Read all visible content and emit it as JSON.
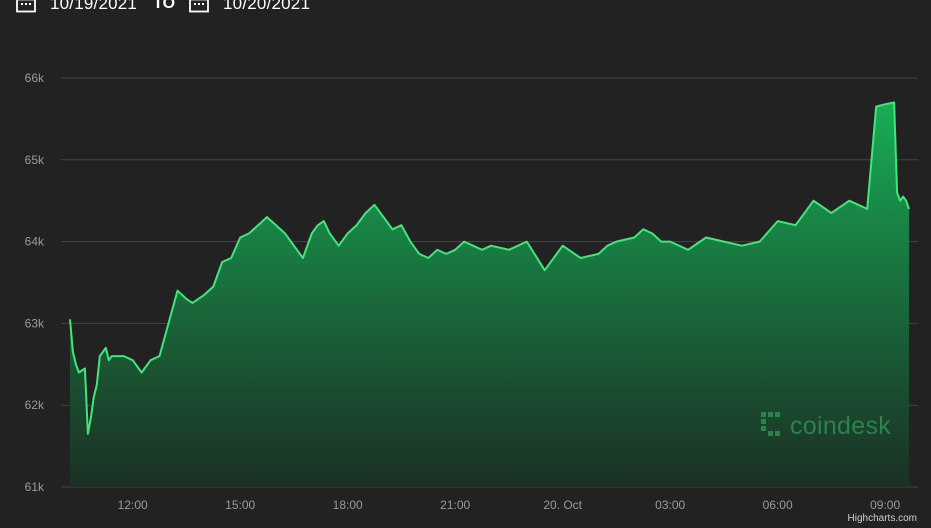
{
  "date_range": {
    "from": "10/19/2021",
    "to_label": "TO",
    "to": "10/20/2021",
    "from_icon": "calendar-icon",
    "to_icon": "calendar-icon"
  },
  "watermark": {
    "text": "coindesk",
    "icon": "coindesk-logo-icon"
  },
  "credits": "Highcharts.com",
  "colors": {
    "background": "#222222",
    "line": "#3ee878",
    "area_top": "#17b55a",
    "area_bottom": "#1a3324",
    "grid": "#444444",
    "axis_text": "#9a9a9a"
  },
  "chart_data": {
    "type": "area",
    "title": "",
    "xlabel": "",
    "ylabel": "",
    "ylim": [
      61000,
      66000
    ],
    "yticks": [
      61000,
      62000,
      63000,
      64000,
      65000,
      66000
    ],
    "ytick_labels": [
      "61k",
      "62k",
      "63k",
      "64k",
      "65k",
      "66k"
    ],
    "xlim": [
      "2021-10-19 10:00",
      "2021-10-20 09:55"
    ],
    "xticks": [
      "2021-10-19 12:00",
      "2021-10-19 15:00",
      "2021-10-19 18:00",
      "2021-10-19 21:00",
      "2021-10-20 00:00",
      "2021-10-20 03:00",
      "2021-10-20 06:00",
      "2021-10-20 09:00"
    ],
    "xtick_labels": [
      "12:00",
      "15:00",
      "18:00",
      "21:00",
      "20. Oct",
      "03:00",
      "06:00",
      "09:00"
    ],
    "grid": true,
    "legend": "none",
    "series": [
      {
        "x": [
          "2021-10-19 10:15",
          "2021-10-19 10:20",
          "2021-10-19 10:25",
          "2021-10-19 10:30",
          "2021-10-19 10:40",
          "2021-10-19 10:45",
          "2021-10-19 10:50",
          "2021-10-19 10:55",
          "2021-10-19 11:00",
          "2021-10-19 11:05",
          "2021-10-19 11:10",
          "2021-10-19 11:15",
          "2021-10-19 11:20",
          "2021-10-19 11:25",
          "2021-10-19 11:35",
          "2021-10-19 11:45",
          "2021-10-19 12:00",
          "2021-10-19 12:15",
          "2021-10-19 12:30",
          "2021-10-19 12:45",
          "2021-10-19 13:00",
          "2021-10-19 13:15",
          "2021-10-19 13:30",
          "2021-10-19 13:40",
          "2021-10-19 13:50",
          "2021-10-19 14:00",
          "2021-10-19 14:15",
          "2021-10-19 14:30",
          "2021-10-19 14:45",
          "2021-10-19 15:00",
          "2021-10-19 15:15",
          "2021-10-19 15:30",
          "2021-10-19 15:45",
          "2021-10-19 16:00",
          "2021-10-19 16:15",
          "2021-10-19 16:30",
          "2021-10-19 16:45",
          "2021-10-19 17:00",
          "2021-10-19 17:10",
          "2021-10-19 17:20",
          "2021-10-19 17:30",
          "2021-10-19 17:45",
          "2021-10-19 18:00",
          "2021-10-19 18:15",
          "2021-10-19 18:30",
          "2021-10-19 18:45",
          "2021-10-19 19:00",
          "2021-10-19 19:15",
          "2021-10-19 19:30",
          "2021-10-19 19:45",
          "2021-10-19 20:00",
          "2021-10-19 20:15",
          "2021-10-19 20:30",
          "2021-10-19 20:45",
          "2021-10-19 21:00",
          "2021-10-19 21:15",
          "2021-10-19 21:30",
          "2021-10-19 21:45",
          "2021-10-19 22:00",
          "2021-10-19 22:30",
          "2021-10-19 23:00",
          "2021-10-19 23:30",
          "2021-10-20 00:00",
          "2021-10-20 00:30",
          "2021-10-20 01:00",
          "2021-10-20 01:15",
          "2021-10-20 01:30",
          "2021-10-20 02:00",
          "2021-10-20 02:15",
          "2021-10-20 02:30",
          "2021-10-20 02:45",
          "2021-10-20 03:00",
          "2021-10-20 03:30",
          "2021-10-20 04:00",
          "2021-10-20 04:30",
          "2021-10-20 05:00",
          "2021-10-20 05:30",
          "2021-10-20 06:00",
          "2021-10-20 06:30",
          "2021-10-20 07:00",
          "2021-10-20 07:30",
          "2021-10-20 08:00",
          "2021-10-20 08:15",
          "2021-10-20 08:30",
          "2021-10-20 08:45",
          "2021-10-20 09:00",
          "2021-10-20 09:15",
          "2021-10-20 09:20",
          "2021-10-20 09:25",
          "2021-10-20 09:30",
          "2021-10-20 09:35",
          "2021-10-20 09:40"
        ],
        "values": [
          63050,
          62650,
          62500,
          62400,
          62450,
          61650,
          61850,
          62100,
          62250,
          62600,
          62650,
          62700,
          62550,
          62600,
          62600,
          62600,
          62550,
          62400,
          62550,
          62600,
          63000,
          63400,
          63300,
          63250,
          63300,
          63350,
          63450,
          63750,
          63800,
          64050,
          64100,
          64200,
          64300,
          64200,
          64100,
          63950,
          63800,
          64100,
          64200,
          64250,
          64100,
          63950,
          64100,
          64200,
          64350,
          64450,
          64300,
          64150,
          64200,
          64000,
          63850,
          63800,
          63900,
          63850,
          63900,
          64000,
          63950,
          63900,
          63950,
          63900,
          64000,
          63650,
          63950,
          63800,
          63850,
          63950,
          64000,
          64050,
          64150,
          64100,
          64000,
          64000,
          63900,
          64050,
          64000,
          63950,
          64000,
          64250,
          64200,
          64500,
          64350,
          64500,
          64450,
          64400,
          65650,
          65680,
          65700,
          64600,
          64500,
          64550,
          64500,
          64400
        ]
      }
    ]
  }
}
